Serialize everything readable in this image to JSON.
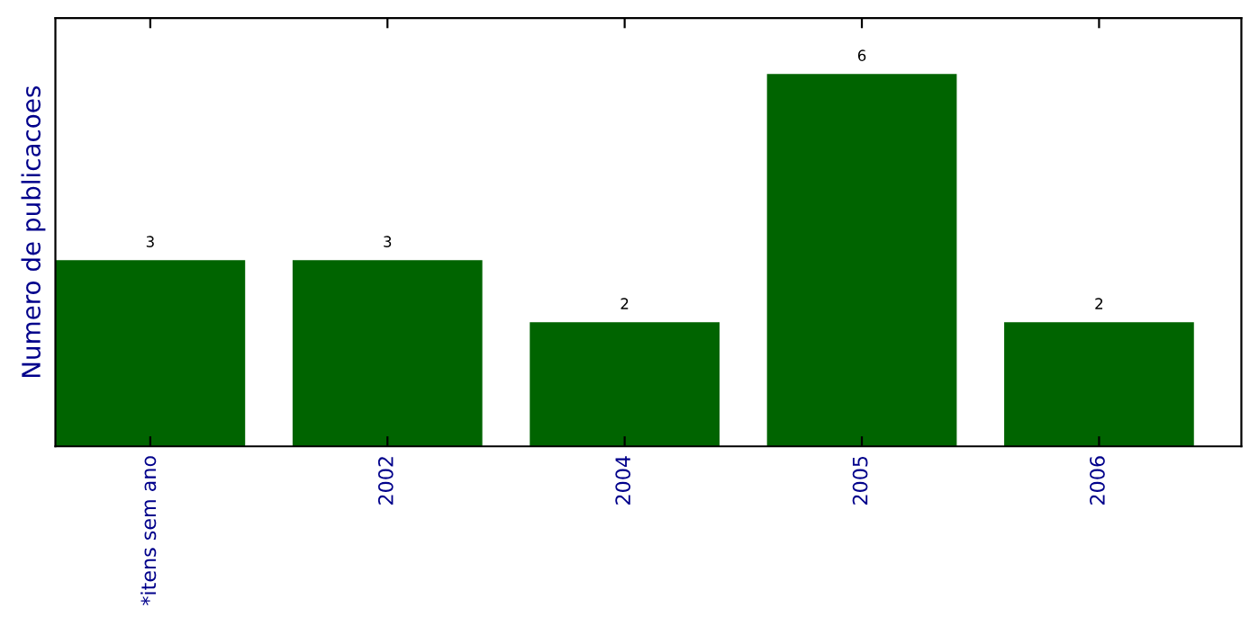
{
  "chart_data": {
    "type": "bar",
    "ylabel": "Numero de publicacoes",
    "categories": [
      "*itens sem ano",
      "2002",
      "2004",
      "2005",
      "2006"
    ],
    "values": [
      3,
      3,
      2,
      6,
      2
    ],
    "color": "#006400",
    "ylim": [
      0,
      6.9
    ],
    "data_labels": true,
    "tick_labels": "x",
    "grid": false
  }
}
